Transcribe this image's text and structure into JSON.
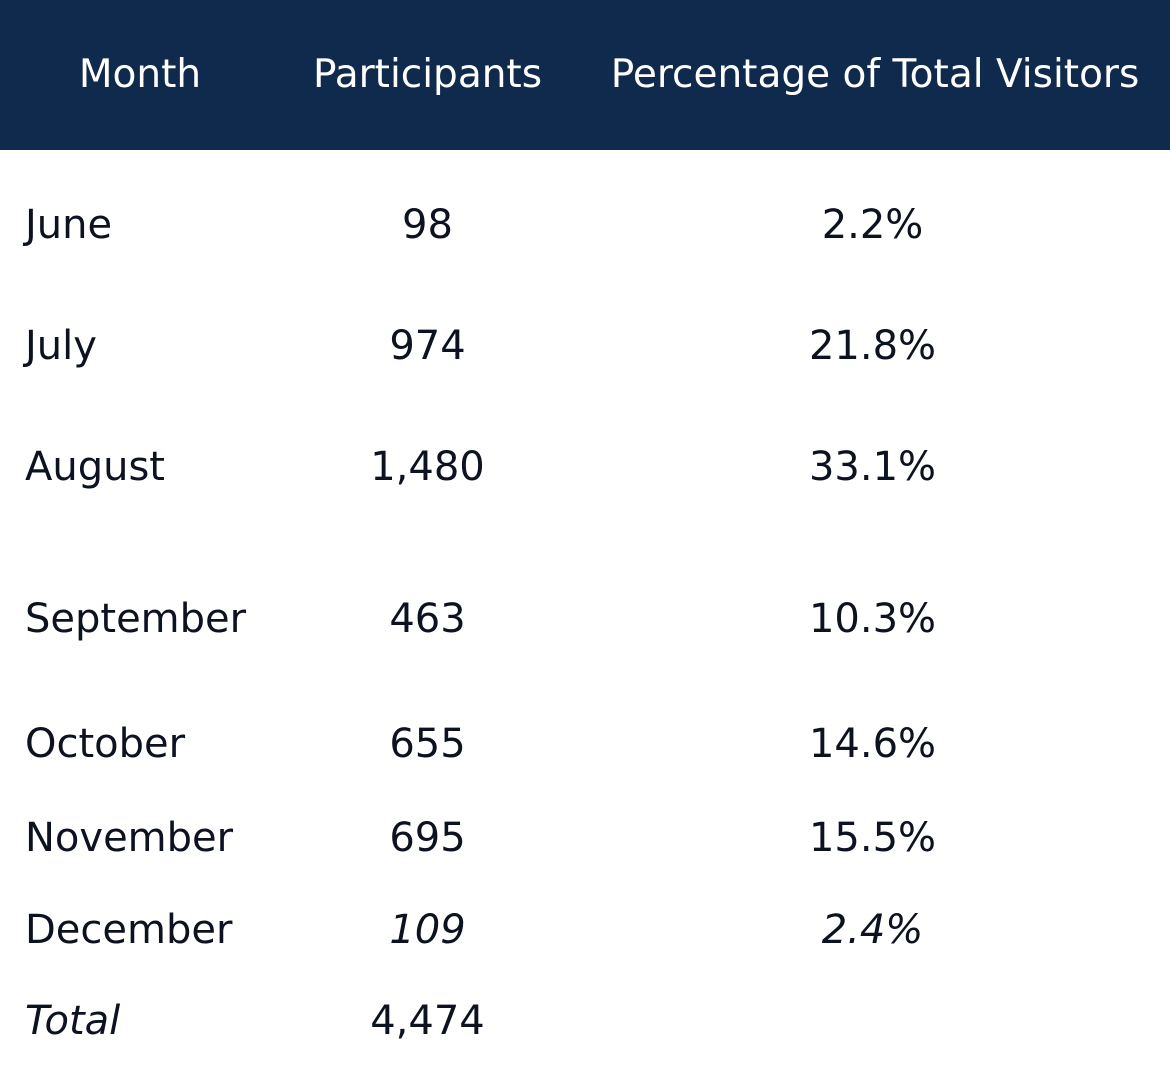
{
  "chart_data": {
    "type": "table",
    "columns": [
      "Month",
      "Participants",
      "Percentage of Total Visitors"
    ],
    "rows": [
      {
        "month": "June",
        "participants": "98",
        "percentage": "2.2%"
      },
      {
        "month": "July",
        "participants": "974",
        "percentage": "21.8%"
      },
      {
        "month": "August",
        "participants": "1,480",
        "percentage": "33.1%"
      },
      {
        "month": "September",
        "participants": "463",
        "percentage": "10.3%"
      },
      {
        "month": "October",
        "participants": "655",
        "percentage": "14.6%"
      },
      {
        "month": "November",
        "participants": "695",
        "percentage": "15.5%"
      },
      {
        "month": "December",
        "participants": "109",
        "percentage": "2.4%"
      }
    ],
    "total": {
      "label": "Total",
      "participants": "4,474",
      "percentage": ""
    },
    "header_background": "#0f2a4c",
    "header_text_color": "#ffffff",
    "body_text_color": "#0c1220"
  }
}
